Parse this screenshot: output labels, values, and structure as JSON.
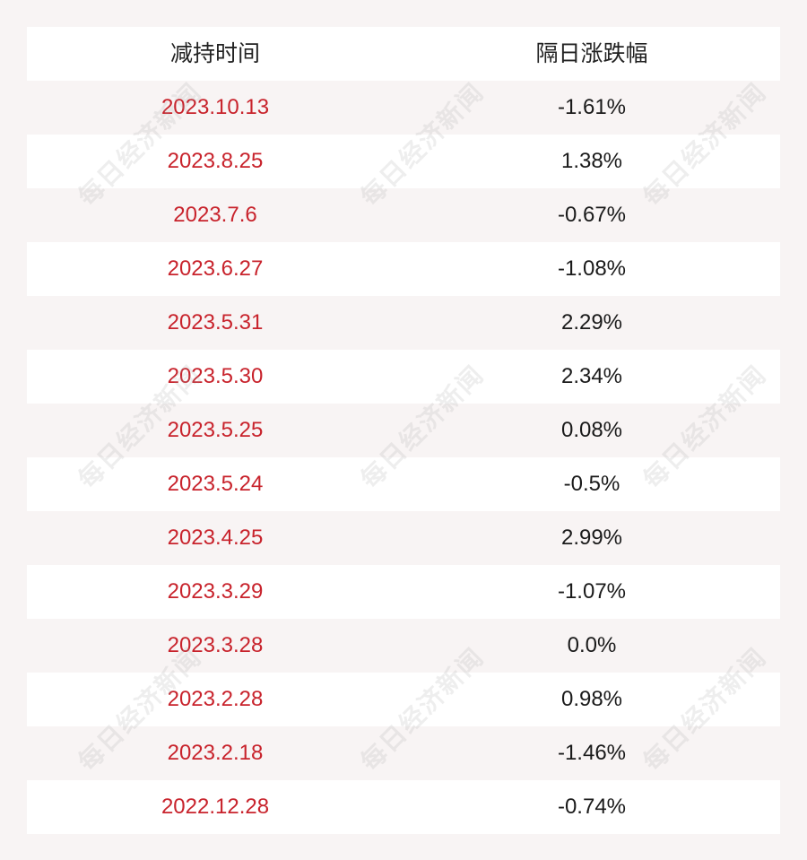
{
  "table": {
    "headers": [
      "减持时间",
      "隔日涨跌幅"
    ],
    "rows": [
      {
        "date": "2023.10.13",
        "change": "-1.61%"
      },
      {
        "date": "2023.8.25",
        "change": "1.38%"
      },
      {
        "date": "2023.7.6",
        "change": "-0.67%"
      },
      {
        "date": "2023.6.27",
        "change": "-1.08%"
      },
      {
        "date": "2023.5.31",
        "change": "2.29%"
      },
      {
        "date": "2023.5.30",
        "change": "2.34%"
      },
      {
        "date": "2023.5.25",
        "change": "0.08%"
      },
      {
        "date": "2023.5.24",
        "change": "-0.5%"
      },
      {
        "date": "2023.4.25",
        "change": "2.99%"
      },
      {
        "date": "2023.3.29",
        "change": "-1.07%"
      },
      {
        "date": "2023.3.28",
        "change": "0.0%"
      },
      {
        "date": "2023.2.28",
        "change": "0.98%"
      },
      {
        "date": "2023.2.18",
        "change": "-1.46%"
      },
      {
        "date": "2022.12.28",
        "change": "-0.74%"
      }
    ]
  },
  "watermark": {
    "text": "每日经济新闻"
  },
  "colors": {
    "date_text": "#c8232c",
    "value_text": "#1a1a1a",
    "row_white": "#ffffff",
    "row_alt": "#f8f4f4"
  }
}
